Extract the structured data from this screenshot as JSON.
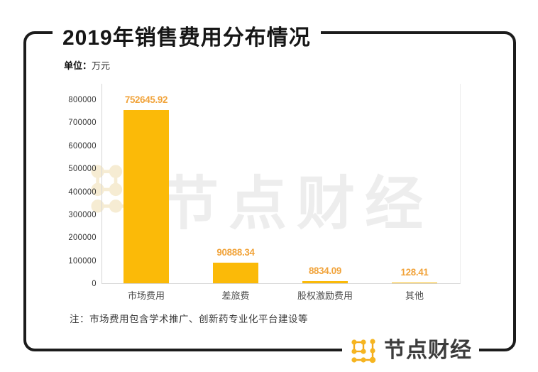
{
  "header": {
    "title": "2019年销售费用分布情况",
    "unit_label": "单位：",
    "unit_value": "万元"
  },
  "note": "注：市场费用包含学术推广、创新药专业化平台建设等",
  "watermark_text": "节点财经",
  "footer": {
    "brand_name": "节点财经"
  },
  "colors": {
    "bar": "#FBBA08",
    "value_label": "#F1A33A",
    "brand_orange": "#F2A81D",
    "frame": "#1C1C1C",
    "axis_line": "#D6D6D6",
    "watermark_gray": "#EDEDED"
  },
  "chart_data": {
    "type": "bar",
    "title": "2019年销售费用分布情况",
    "unit": "万元",
    "categories": [
      "市场费用",
      "差旅费",
      "股权激励费用",
      "其他"
    ],
    "values": [
      752645.92,
      90888.34,
      8834.09,
      128.41
    ],
    "value_labels": [
      "752645.92",
      "90888.34",
      "8834.09",
      "128.41"
    ],
    "xlabel": "",
    "ylabel": "万元",
    "ylim": [
      0,
      800000
    ],
    "ytick_interval": 100000,
    "yticks": [
      "800000",
      "700000",
      "600000",
      "500000",
      "400000",
      "300000",
      "200000",
      "100000",
      "0"
    ],
    "grid": false,
    "legend": false,
    "bar_color": "#FBBA08",
    "label_color": "#F1A33A",
    "note": "注：市场费用包含学术推广、创新药专业化平台建设等"
  }
}
